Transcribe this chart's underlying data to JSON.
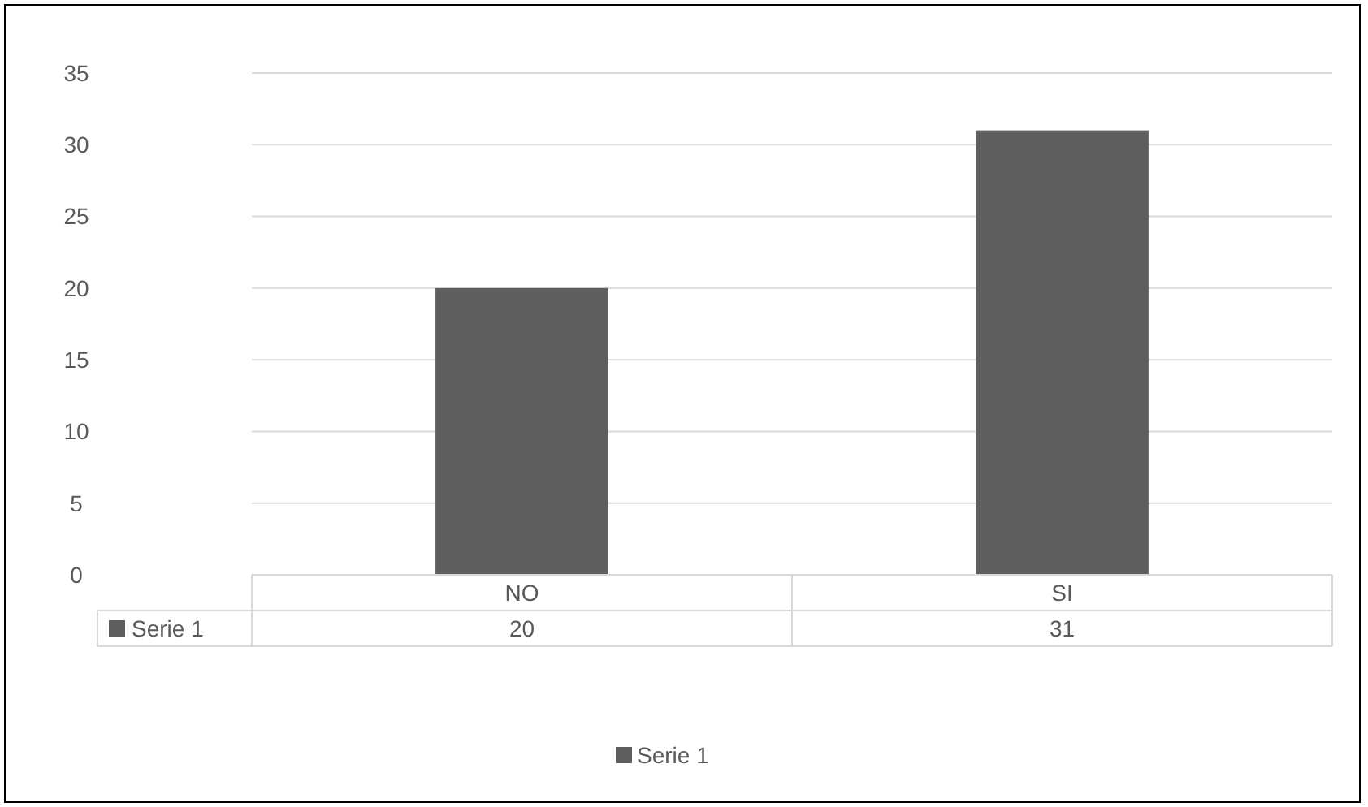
{
  "chart_data": {
    "type": "bar",
    "categories": [
      "NO",
      "SI"
    ],
    "series": [
      {
        "name": "Serie 1",
        "color": "#5f5f5f",
        "values": [
          20,
          31
        ]
      }
    ],
    "ylim": [
      0,
      35
    ],
    "yticks": [
      0,
      5,
      10,
      15,
      20,
      25,
      30,
      35
    ],
    "grid": "y",
    "legend": "bottom",
    "data_labels": true
  }
}
